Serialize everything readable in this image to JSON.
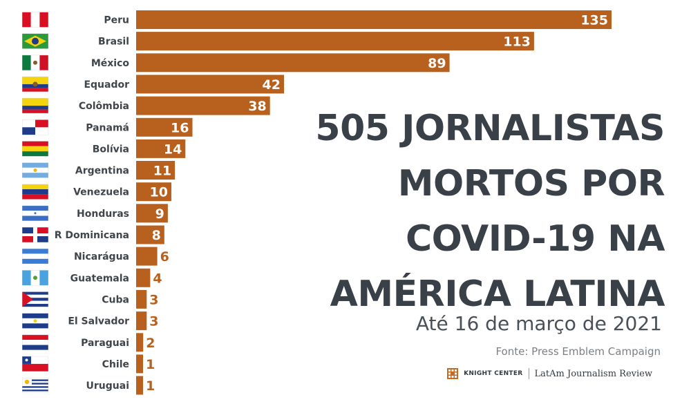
{
  "chart_data": {
    "type": "bar",
    "orientation": "horizontal",
    "categories": [
      "Peru",
      "Brasil",
      "México",
      "Equador",
      "Colômbia",
      "Panamá",
      "Bolívia",
      "Argentina",
      "Venezuela",
      "Honduras",
      "R Dominicana",
      "Nicarágua",
      "Guatemala",
      "Cuba",
      "El Salvador",
      "Paraguai",
      "Chile",
      "Uruguai"
    ],
    "values": [
      135,
      113,
      89,
      42,
      38,
      16,
      14,
      11,
      10,
      9,
      8,
      6,
      4,
      3,
      3,
      2,
      1,
      1
    ],
    "value_labels": [
      "135",
      "113",
      "89",
      "42",
      "38",
      "16",
      "14",
      "11",
      "10",
      "9",
      "8",
      "6",
      "4",
      "3",
      "3",
      "2",
      "1",
      "1"
    ],
    "title_lines": [
      "505 JORNALISTAS",
      "MORTOS POR",
      "COVID-19 NA",
      "AMÉRICA LATINA"
    ],
    "subtitle": "Até 16 de março de 2021",
    "source": "Fonte: Press Emblem Campaign",
    "bar_color": "#b8611e",
    "grid": false,
    "legend": "none"
  },
  "logos": {
    "knight_center": "KNIGHT CENTER",
    "latam_review": "LatAm Journalism Review"
  }
}
